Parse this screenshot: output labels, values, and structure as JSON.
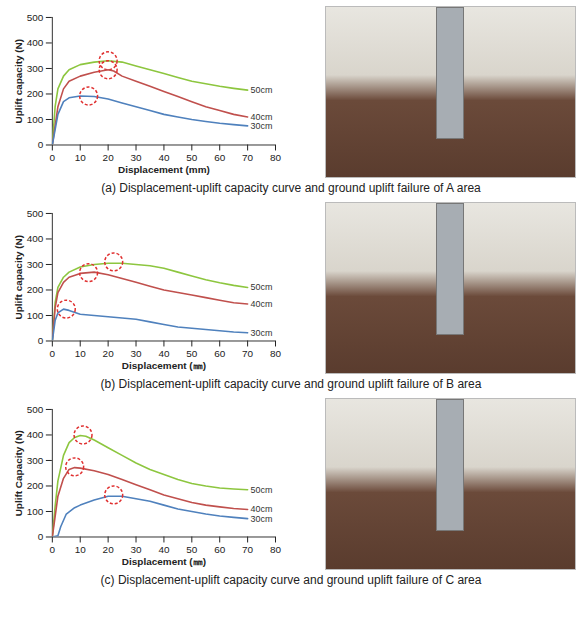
{
  "chart_data": [
    {
      "type": "line",
      "caption": "(a) Displacement-uplift capacity curve and ground uplift failure of A area",
      "x_label": "Displacement (mm)",
      "y_label": "Uplift capacity (N)",
      "xlim": [
        0,
        80
      ],
      "xticks": [
        0,
        10,
        20,
        30,
        40,
        50,
        60,
        70,
        80
      ],
      "ylim": [
        0,
        500
      ],
      "yticks": [
        0,
        100,
        200,
        300,
        400,
        500
      ],
      "series": [
        {
          "name": "50cm",
          "color": "#8dc63f",
          "x": [
            0,
            1,
            2,
            4,
            6,
            10,
            15,
            20,
            25,
            30,
            35,
            40,
            45,
            50,
            55,
            60,
            65,
            70
          ],
          "values": [
            0,
            150,
            220,
            270,
            295,
            315,
            325,
            330,
            325,
            310,
            295,
            280,
            265,
            250,
            240,
            230,
            222,
            215
          ],
          "peak": {
            "x": 20,
            "y": 330
          }
        },
        {
          "name": "40cm",
          "color": "#c0504d",
          "x": [
            0,
            2,
            4,
            6,
            10,
            15,
            20,
            22,
            25,
            30,
            35,
            40,
            45,
            50,
            55,
            60,
            65,
            70
          ],
          "values": [
            0,
            150,
            220,
            250,
            270,
            285,
            295,
            290,
            270,
            250,
            230,
            210,
            190,
            170,
            150,
            135,
            120,
            110
          ],
          "peak": {
            "x": 20,
            "y": 295
          }
        },
        {
          "name": "30cm",
          "color": "#4f81bd",
          "x": [
            0,
            2,
            4,
            6,
            10,
            15,
            20,
            25,
            30,
            35,
            40,
            45,
            50,
            55,
            60,
            65,
            70
          ],
          "values": [
            0,
            120,
            170,
            185,
            192,
            190,
            180,
            165,
            150,
            135,
            120,
            110,
            100,
            92,
            85,
            80,
            75
          ],
          "peak": {
            "x": 13,
            "y": 192
          }
        }
      ]
    },
    {
      "type": "line",
      "caption": "(b) Displacement-uplift capacity curve and ground uplift failure of B area",
      "x_label": "Displacement (㎜)",
      "y_label": "Uplift capacity (N)",
      "xlim": [
        0,
        80
      ],
      "xticks": [
        0,
        10,
        20,
        30,
        40,
        50,
        60,
        70,
        80
      ],
      "ylim": [
        0,
        500
      ],
      "yticks": [
        0,
        100,
        200,
        300,
        400,
        500
      ],
      "series": [
        {
          "name": "50cm",
          "color": "#8dc63f",
          "x": [
            0,
            1,
            2,
            4,
            6,
            10,
            15,
            20,
            25,
            30,
            35,
            40,
            45,
            50,
            55,
            60,
            65,
            70
          ],
          "values": [
            0,
            150,
            210,
            250,
            270,
            290,
            300,
            305,
            305,
            300,
            295,
            285,
            270,
            255,
            240,
            228,
            218,
            210
          ],
          "peak": {
            "x": 22,
            "y": 310
          }
        },
        {
          "name": "40cm",
          "color": "#c0504d",
          "x": [
            0,
            1,
            2,
            4,
            6,
            10,
            15,
            20,
            25,
            30,
            35,
            40,
            45,
            50,
            55,
            60,
            65,
            70
          ],
          "values": [
            0,
            130,
            190,
            230,
            250,
            265,
            270,
            260,
            245,
            230,
            215,
            200,
            190,
            180,
            170,
            160,
            150,
            145
          ],
          "peak": {
            "x": 13,
            "y": 268
          }
        },
        {
          "name": "30cm",
          "color": "#4f81bd",
          "x": [
            0,
            1,
            2,
            4,
            6,
            10,
            15,
            20,
            25,
            30,
            35,
            40,
            45,
            50,
            55,
            60,
            65,
            70
          ],
          "values": [
            0,
            80,
            110,
            125,
            120,
            105,
            100,
            95,
            90,
            85,
            75,
            65,
            55,
            50,
            45,
            40,
            35,
            32
          ],
          "peak": {
            "x": 5,
            "y": 125
          }
        }
      ]
    },
    {
      "type": "line",
      "caption": "(c) Displacement-uplift capacity curve and ground uplift failure of C area",
      "x_label": "Displacement (㎜)",
      "y_label": "Uplift Capacity (N)",
      "xlim": [
        0,
        80
      ],
      "xticks": [
        0,
        10,
        20,
        30,
        40,
        50,
        60,
        70,
        80
      ],
      "ylim": [
        0,
        500
      ],
      "yticks": [
        0,
        100,
        200,
        300,
        400,
        500
      ],
      "series": [
        {
          "name": "50cm",
          "color": "#8dc63f",
          "x": [
            0,
            1,
            2,
            4,
            6,
            8,
            10,
            12,
            15,
            20,
            25,
            30,
            35,
            40,
            45,
            50,
            55,
            60,
            65,
            70
          ],
          "values": [
            0,
            120,
            220,
            320,
            370,
            390,
            398,
            395,
            380,
            350,
            320,
            290,
            265,
            245,
            225,
            210,
            200,
            192,
            188,
            185
          ],
          "peak": {
            "x": 11,
            "y": 400
          }
        },
        {
          "name": "40cm",
          "color": "#c0504d",
          "x": [
            0,
            1,
            2,
            4,
            6,
            8,
            10,
            15,
            20,
            25,
            30,
            35,
            40,
            45,
            50,
            55,
            60,
            65,
            70
          ],
          "values": [
            0,
            80,
            160,
            230,
            265,
            272,
            270,
            260,
            245,
            225,
            205,
            185,
            165,
            150,
            135,
            125,
            118,
            112,
            108
          ],
          "peak": {
            "x": 8,
            "y": 275
          }
        },
        {
          "name": "30cm",
          "color": "#4f81bd",
          "x": [
            0,
            2,
            3,
            5,
            8,
            10,
            15,
            20,
            25,
            30,
            35,
            40,
            45,
            50,
            55,
            60,
            65,
            70
          ],
          "values": [
            0,
            5,
            40,
            90,
            115,
            125,
            145,
            160,
            160,
            150,
            140,
            125,
            110,
            100,
            90,
            82,
            77,
            72
          ],
          "peak": {
            "x": 22,
            "y": 165
          }
        }
      ]
    }
  ]
}
